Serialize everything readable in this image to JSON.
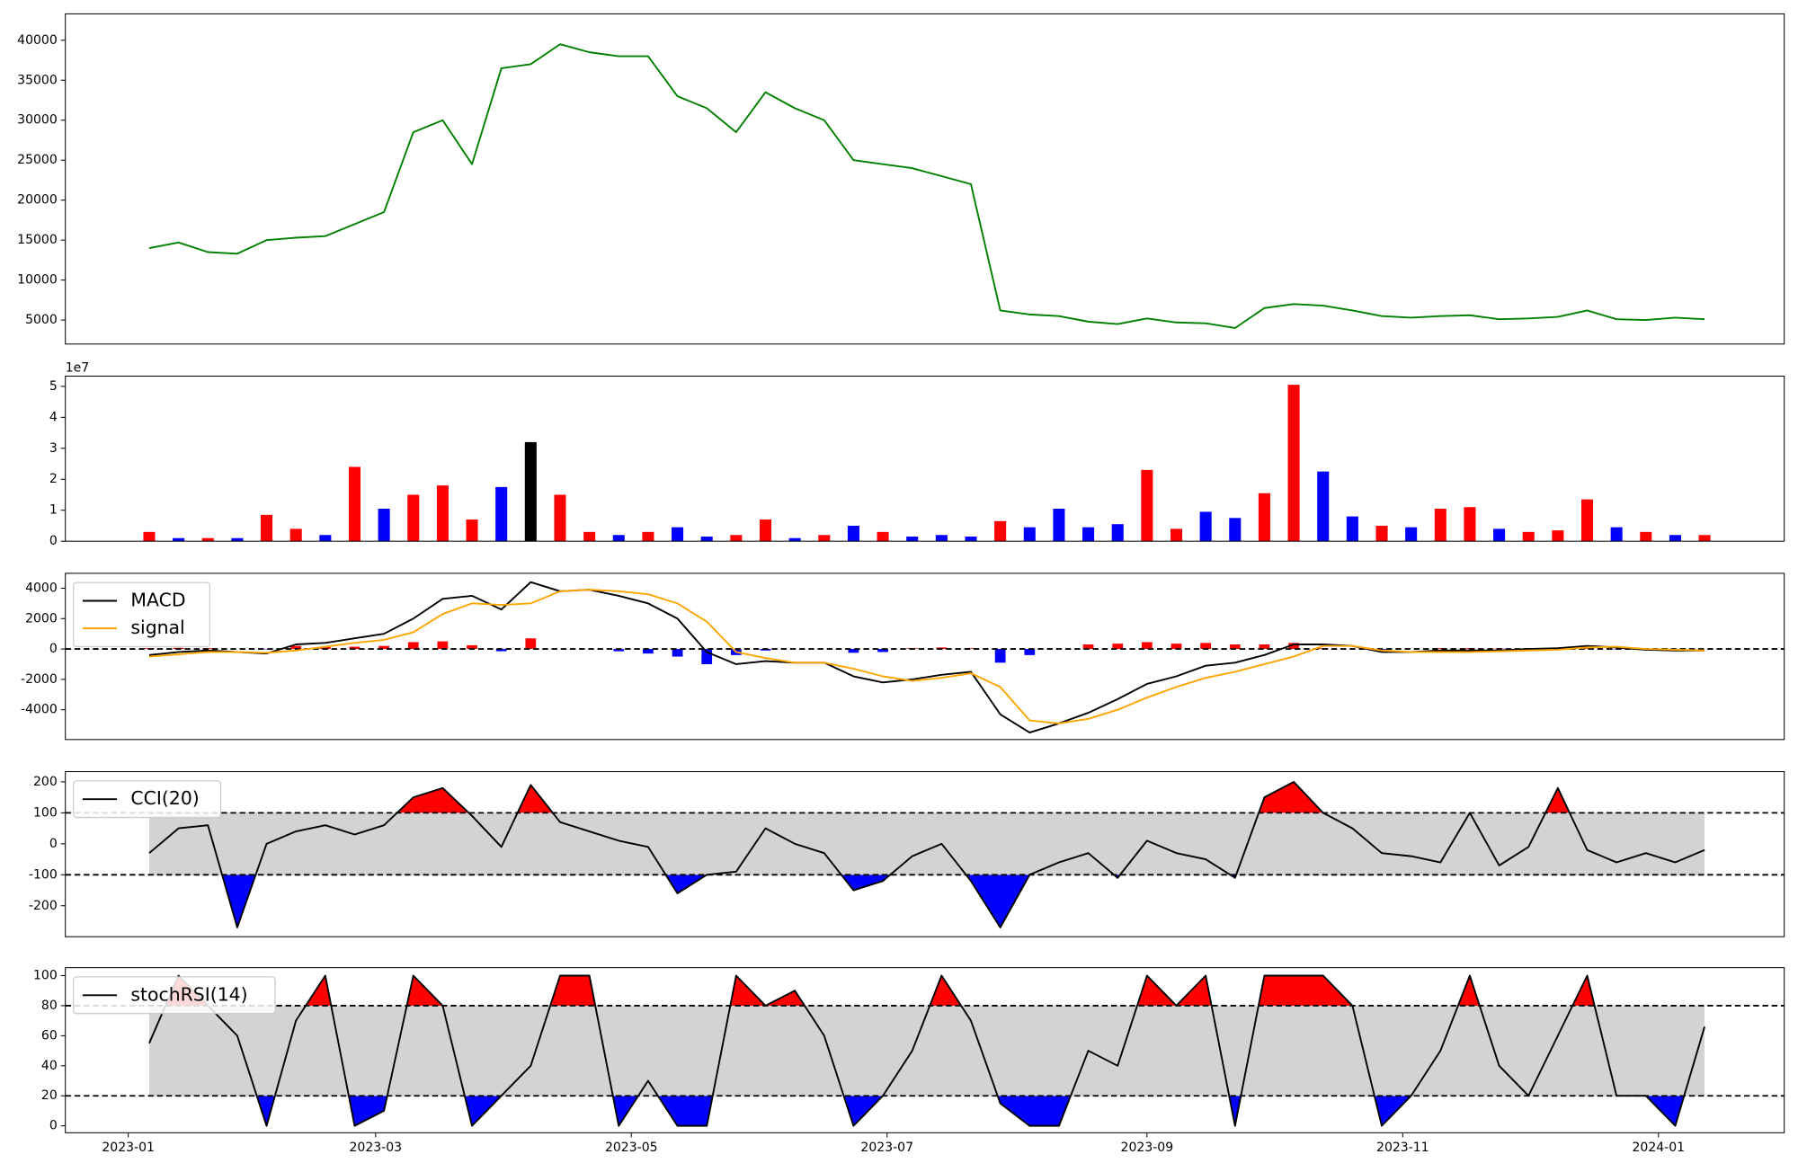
{
  "chart_data": [
    {
      "type": "line",
      "xlim": [
        "2022-12-17",
        "2024-01-31"
      ],
      "ylim": [
        2000,
        43300
      ],
      "yticks": [
        5000,
        10000,
        15000,
        20000,
        25000,
        30000,
        35000,
        40000
      ],
      "x": [
        "2023-01-06",
        "2023-01-13",
        "2023-01-20",
        "2023-01-27",
        "2023-02-03",
        "2023-02-10",
        "2023-02-17",
        "2023-02-24",
        "2023-03-03",
        "2023-03-10",
        "2023-03-17",
        "2023-03-24",
        "2023-03-31",
        "2023-04-07",
        "2023-04-14",
        "2023-04-21",
        "2023-04-28",
        "2023-05-05",
        "2023-05-12",
        "2023-05-19",
        "2023-05-26",
        "2023-06-02",
        "2023-06-09",
        "2023-06-16",
        "2023-06-23",
        "2023-06-30",
        "2023-07-07",
        "2023-07-14",
        "2023-07-21",
        "2023-07-28",
        "2023-08-04",
        "2023-08-11",
        "2023-08-18",
        "2023-08-25",
        "2023-09-01",
        "2023-09-08",
        "2023-09-15",
        "2023-09-22",
        "2023-09-29",
        "2023-10-06",
        "2023-10-13",
        "2023-10-20",
        "2023-10-27",
        "2023-11-03",
        "2023-11-10",
        "2023-11-17",
        "2023-11-24",
        "2023-12-01",
        "2023-12-08",
        "2023-12-15",
        "2023-12-22",
        "2023-12-29",
        "2024-01-05",
        "2024-01-12"
      ],
      "series": [
        {
          "color": "#008000",
          "values": [
            14000,
            14700,
            13500,
            13300,
            15000,
            15300,
            15500,
            17000,
            18500,
            28500,
            30000,
            24500,
            36500,
            37000,
            39500,
            38500,
            38000,
            38000,
            33000,
            31500,
            28500,
            33500,
            31500,
            30000,
            25000,
            24500,
            24000,
            23000,
            22000,
            6200,
            5700,
            5500,
            4800,
            4500,
            5200,
            4700,
            4600,
            4000,
            6500,
            7000,
            6800,
            6200,
            5500,
            5300,
            5500,
            5600,
            5100,
            5200,
            5400,
            6200,
            5100,
            5000,
            5300,
            5100
          ]
        }
      ]
    },
    {
      "type": "bar",
      "xlim": [
        "2022-12-17",
        "2024-01-31"
      ],
      "ylim": [
        0,
        53300000
      ],
      "offset_label": "1e7",
      "yticks": [
        0,
        {
          "value": 10000000,
          "label": "1"
        },
        {
          "value": 20000000,
          "label": "2"
        },
        {
          "value": 30000000,
          "label": "3"
        },
        {
          "value": 40000000,
          "label": "4"
        },
        {
          "value": 50000000,
          "label": "5"
        }
      ],
      "x": [
        "2023-01-06",
        "2023-01-13",
        "2023-01-20",
        "2023-01-27",
        "2023-02-03",
        "2023-02-10",
        "2023-02-17",
        "2023-02-24",
        "2023-03-03",
        "2023-03-10",
        "2023-03-17",
        "2023-03-24",
        "2023-03-31",
        "2023-04-07",
        "2023-04-14",
        "2023-04-21",
        "2023-04-28",
        "2023-05-05",
        "2023-05-12",
        "2023-05-19",
        "2023-05-26",
        "2023-06-02",
        "2023-06-09",
        "2023-06-16",
        "2023-06-23",
        "2023-06-30",
        "2023-07-07",
        "2023-07-14",
        "2023-07-21",
        "2023-07-28",
        "2023-08-04",
        "2023-08-11",
        "2023-08-18",
        "2023-08-25",
        "2023-09-01",
        "2023-09-08",
        "2023-09-15",
        "2023-09-22",
        "2023-09-29",
        "2023-10-06",
        "2023-10-13",
        "2023-10-20",
        "2023-10-27",
        "2023-11-03",
        "2023-11-10",
        "2023-11-17",
        "2023-11-24",
        "2023-12-01",
        "2023-12-08",
        "2023-12-15",
        "2023-12-22",
        "2023-12-29",
        "2024-01-05",
        "2024-01-12"
      ],
      "values": [
        3000000,
        1000000,
        1000000,
        1000000,
        8500000,
        4000000,
        2000000,
        24000000,
        10500000,
        15000000,
        18000000,
        7000000,
        17500000,
        32000000,
        15000000,
        3000000,
        2000000,
        3000000,
        4500000,
        1500000,
        2000000,
        7000000,
        1000000,
        2000000,
        5000000,
        3000000,
        1500000,
        2000000,
        1500000,
        6500000,
        4500000,
        10500000,
        4500000,
        5500000,
        23000000,
        4000000,
        9500000,
        7500000,
        15500000,
        50500000,
        22500000,
        8000000,
        5000000,
        4500000,
        10500000,
        11000000,
        4000000,
        3000000,
        3500000,
        13500000,
        4500000,
        3000000,
        2000000,
        2000000
      ],
      "colors": [
        "red",
        "blue",
        "red",
        "blue",
        "red",
        "red",
        "blue",
        "red",
        "blue",
        "red",
        "red",
        "red",
        "blue",
        "black",
        "red",
        "red",
        "blue",
        "red",
        "blue",
        "blue",
        "red",
        "red",
        "blue",
        "red",
        "blue",
        "red",
        "blue",
        "blue",
        "blue",
        "red",
        "blue",
        "blue",
        "blue",
        "blue",
        "red",
        "red",
        "blue",
        "blue",
        "red",
        "red",
        "blue",
        "blue",
        "red",
        "blue",
        "red",
        "red",
        "blue",
        "red",
        "red",
        "red",
        "blue",
        "red",
        "blue",
        "red"
      ]
    },
    {
      "type": "line",
      "xlim": [
        "2022-12-17",
        "2024-01-31"
      ],
      "ylim": [
        -5960,
        4980
      ],
      "yticks": [
        -4000,
        -2000,
        0,
        2000,
        4000
      ],
      "hlines": [
        0
      ],
      "legend": "upper left",
      "x": [
        "2023-01-06",
        "2023-01-13",
        "2023-01-20",
        "2023-01-27",
        "2023-02-03",
        "2023-02-10",
        "2023-02-17",
        "2023-02-24",
        "2023-03-03",
        "2023-03-10",
        "2023-03-17",
        "2023-03-24",
        "2023-03-31",
        "2023-04-07",
        "2023-04-14",
        "2023-04-21",
        "2023-04-28",
        "2023-05-05",
        "2023-05-12",
        "2023-05-19",
        "2023-05-26",
        "2023-06-02",
        "2023-06-09",
        "2023-06-16",
        "2023-06-23",
        "2023-06-30",
        "2023-07-07",
        "2023-07-14",
        "2023-07-21",
        "2023-07-28",
        "2023-08-04",
        "2023-08-11",
        "2023-08-18",
        "2023-08-25",
        "2023-09-01",
        "2023-09-08",
        "2023-09-15",
        "2023-09-22",
        "2023-09-29",
        "2023-10-06",
        "2023-10-13",
        "2023-10-20",
        "2023-10-27",
        "2023-11-03",
        "2023-11-10",
        "2023-11-17",
        "2023-11-24",
        "2023-12-01",
        "2023-12-08",
        "2023-12-15",
        "2023-12-22",
        "2023-12-29",
        "2024-01-05",
        "2024-01-12"
      ],
      "histogram": [
        50,
        75,
        50,
        0,
        -25,
        200,
        125,
        150,
        200,
        450,
        500,
        250,
        -150,
        700,
        0,
        0,
        -150,
        -300,
        -500,
        -1000,
        -400,
        -100,
        0,
        0,
        -250,
        -200,
        50,
        100,
        50,
        -900,
        -400,
        0,
        300,
        350,
        450,
        350,
        400,
        300,
        300,
        400,
        50,
        0,
        -50,
        0,
        50,
        50,
        25,
        50,
        50,
        50,
        -25,
        -25,
        -25,
        0
      ],
      "pos_color": "red",
      "neg_color": "blue",
      "series": [
        {
          "name": "MACD",
          "color": "black",
          "values": [
            -400,
            -200,
            -100,
            -200,
            -300,
            300,
            400,
            700,
            1000,
            2000,
            3300,
            3500,
            2600,
            4400,
            3800,
            3900,
            3500,
            3000,
            2000,
            -200,
            -1000,
            -800,
            -900,
            -900,
            -1800,
            -2200,
            -2000,
            -1700,
            -1500,
            -4300,
            -5500,
            -4900,
            -4200,
            -3300,
            -2300,
            -1800,
            -1100,
            -900,
            -400,
            300,
            300,
            200,
            -200,
            -200,
            -100,
            -100,
            -100,
            0,
            50,
            200,
            100,
            -50,
            -100,
            -100
          ]
        },
        {
          "name": "signal",
          "color": "orange",
          "values": [
            -500,
            -350,
            -200,
            -200,
            -250,
            -100,
            150,
            400,
            600,
            1100,
            2300,
            3000,
            2900,
            3000,
            3800,
            3900,
            3800,
            3600,
            3000,
            1800,
            -200,
            -600,
            -900,
            -900,
            -1300,
            -1800,
            -2100,
            -1900,
            -1600,
            -2500,
            -4700,
            -4900,
            -4600,
            -4000,
            -3200,
            -2500,
            -1900,
            -1500,
            -1000,
            -500,
            200,
            200,
            -100,
            -200,
            -200,
            -200,
            -150,
            -100,
            -50,
            100,
            150,
            0,
            -50,
            -100
          ]
        }
      ]
    },
    {
      "type": "line",
      "xlim": [
        "2022-12-17",
        "2024-01-31"
      ],
      "ylim": [
        -300,
        233
      ],
      "yticks": [
        -200,
        -100,
        0,
        100,
        200
      ],
      "hlines": [
        100,
        -100
      ],
      "band_color": "#d3d3d3",
      "above_color": "red",
      "below_color": "blue",
      "legend": "upper left",
      "x": [
        "2023-01-06",
        "2023-01-13",
        "2023-01-20",
        "2023-01-27",
        "2023-02-03",
        "2023-02-10",
        "2023-02-17",
        "2023-02-24",
        "2023-03-03",
        "2023-03-10",
        "2023-03-17",
        "2023-03-24",
        "2023-03-31",
        "2023-04-07",
        "2023-04-14",
        "2023-04-21",
        "2023-04-28",
        "2023-05-05",
        "2023-05-12",
        "2023-05-19",
        "2023-05-26",
        "2023-06-02",
        "2023-06-09",
        "2023-06-16",
        "2023-06-23",
        "2023-06-30",
        "2023-07-07",
        "2023-07-14",
        "2023-07-21",
        "2023-07-28",
        "2023-08-04",
        "2023-08-11",
        "2023-08-18",
        "2023-08-25",
        "2023-09-01",
        "2023-09-08",
        "2023-09-15",
        "2023-09-22",
        "2023-09-29",
        "2023-10-06",
        "2023-10-13",
        "2023-10-20",
        "2023-10-27",
        "2023-11-03",
        "2023-11-10",
        "2023-11-17",
        "2023-11-24",
        "2023-12-01",
        "2023-12-08",
        "2023-12-15",
        "2023-12-22",
        "2023-12-29",
        "2024-01-05",
        "2024-01-12"
      ],
      "series": [
        {
          "name": "CCI(20)",
          "color": "black",
          "values": [
            -30,
            50,
            60,
            -270,
            0,
            40,
            60,
            30,
            60,
            150,
            180,
            90,
            -10,
            190,
            70,
            40,
            10,
            -10,
            -160,
            -100,
            -90,
            50,
            0,
            -30,
            -150,
            -120,
            -40,
            0,
            -120,
            -270,
            -100,
            -60,
            -30,
            -110,
            10,
            -30,
            -50,
            -110,
            150,
            200,
            100,
            50,
            -30,
            -40,
            -60,
            100,
            -70,
            -10,
            180,
            -20,
            -60,
            -30,
            -60,
            -20
          ]
        }
      ]
    },
    {
      "type": "line",
      "xlim": [
        "2022-12-17",
        "2024-01-31"
      ],
      "ylim": [
        -4.6,
        105.3
      ],
      "yticks": [
        0,
        20,
        40,
        60,
        80,
        100
      ],
      "hlines": [
        80,
        20
      ],
      "band_color": "#d3d3d3",
      "above_color": "red",
      "below_color": "blue",
      "legend": "upper left",
      "xticks": [
        {
          "value": "2023-01-01",
          "label": "2023-01"
        },
        {
          "value": "2023-03-01",
          "label": "2023-03"
        },
        {
          "value": "2023-05-01",
          "label": "2023-05"
        },
        {
          "value": "2023-07-01",
          "label": "2023-07"
        },
        {
          "value": "2023-09-01",
          "label": "2023-09"
        },
        {
          "value": "2023-11-01",
          "label": "2023-11"
        },
        {
          "value": "2024-01-01",
          "label": "2024-01"
        }
      ],
      "x": [
        "2023-01-06",
        "2023-01-13",
        "2023-01-20",
        "2023-01-27",
        "2023-02-03",
        "2023-02-10",
        "2023-02-17",
        "2023-02-24",
        "2023-03-03",
        "2023-03-10",
        "2023-03-17",
        "2023-03-24",
        "2023-03-31",
        "2023-04-07",
        "2023-04-14",
        "2023-04-21",
        "2023-04-28",
        "2023-05-05",
        "2023-05-12",
        "2023-05-19",
        "2023-05-26",
        "2023-06-02",
        "2023-06-09",
        "2023-06-16",
        "2023-06-23",
        "2023-06-30",
        "2023-07-07",
        "2023-07-14",
        "2023-07-21",
        "2023-07-28",
        "2023-08-04",
        "2023-08-11",
        "2023-08-18",
        "2023-08-25",
        "2023-09-01",
        "2023-09-08",
        "2023-09-15",
        "2023-09-22",
        "2023-09-29",
        "2023-10-06",
        "2023-10-13",
        "2023-10-20",
        "2023-10-27",
        "2023-11-03",
        "2023-11-10",
        "2023-11-17",
        "2023-11-24",
        "2023-12-01",
        "2023-12-08",
        "2023-12-15",
        "2023-12-22",
        "2023-12-29",
        "2024-01-05",
        "2024-01-12"
      ],
      "series": [
        {
          "name": "stochRSI(14)",
          "color": "black",
          "values": [
            55,
            100,
            80,
            60,
            0,
            70,
            100,
            0,
            10,
            100,
            80,
            0,
            20,
            40,
            100,
            100,
            0,
            30,
            0,
            0,
            100,
            80,
            90,
            60,
            0,
            20,
            50,
            100,
            70,
            15,
            0,
            0,
            50,
            40,
            100,
            80,
            100,
            0,
            100,
            100,
            100,
            80,
            0,
            20,
            50,
            100,
            40,
            20,
            60,
            100,
            20,
            20,
            0,
            66
          ]
        }
      ]
    }
  ]
}
